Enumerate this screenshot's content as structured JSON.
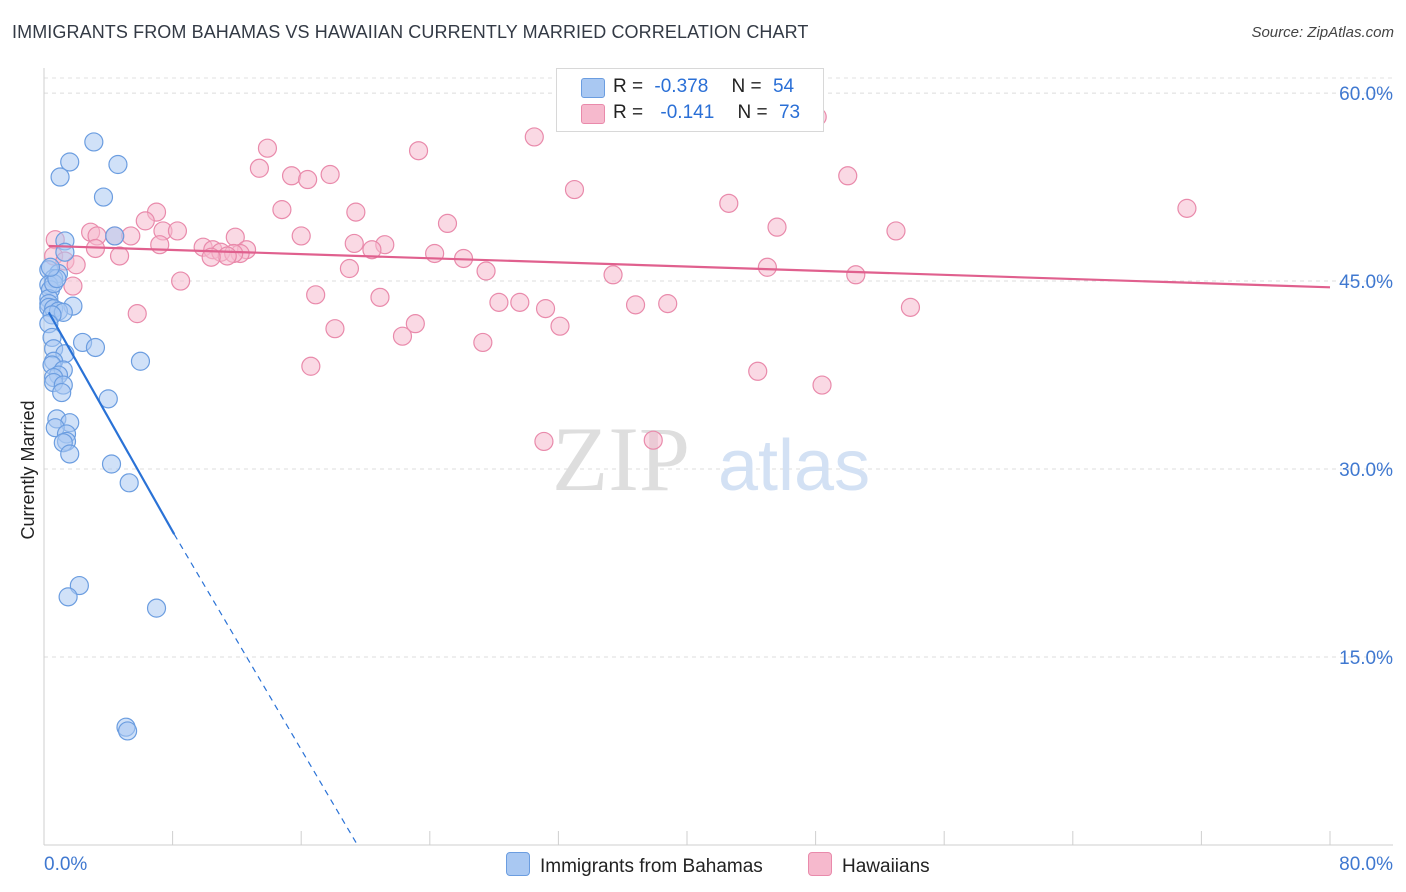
{
  "title": "IMMIGRANTS FROM BAHAMAS VS HAWAIIAN CURRENTLY MARRIED CORRELATION CHART",
  "source": "Source: ZipAtlas.com",
  "watermark": {
    "zip": "ZIP",
    "atlas": "atlas"
  },
  "colors": {
    "blue": "#2a72d6",
    "blue_fill": "#a9c8f2",
    "pink": "#e0608e",
    "pink_fill": "#f6b9cd",
    "axis_value": "#3f78d0",
    "grid": "#dddddd"
  },
  "legend": {
    "blue": {
      "r_label": "R =",
      "r_value": "-0.378",
      "n_label": "N =",
      "n_value": "54"
    },
    "pink": {
      "r_label": "R =",
      "r_value": "-0.141",
      "n_label": "N =",
      "n_value": "73"
    }
  },
  "bottom_legend": {
    "blue": "Immigrants from Bahamas",
    "pink": "Hawaiians"
  },
  "chart_data": {
    "type": "scatter",
    "title": "IMMIGRANTS FROM BAHAMAS VS HAWAIIAN CURRENTLY MARRIED CORRELATION CHART",
    "xlabel": "",
    "ylabel": "Currently Married",
    "xlim": [
      0,
      80
    ],
    "ylim": [
      0,
      62
    ],
    "x_tick_labels": [
      "0.0%",
      "80.0%"
    ],
    "y_ticks": [
      15,
      30,
      45,
      60
    ],
    "y_tick_labels": [
      "15.0%",
      "30.0%",
      "45.0%",
      "60.0%"
    ],
    "series": [
      {
        "name": "Immigrants from Bahamas",
        "color": "#2a72d6",
        "r": -0.378,
        "n": 54,
        "trend": {
          "x": [
            0.3,
            8.1
          ],
          "y": [
            42.5,
            24.8
          ],
          "dashed_to": {
            "x": 19.5,
            "y": 0
          }
        },
        "points": [
          [
            3.1,
            56.1
          ],
          [
            1.6,
            54.5
          ],
          [
            4.6,
            54.3
          ],
          [
            1.0,
            53.3
          ],
          [
            3.7,
            51.7
          ],
          [
            4.4,
            48.6
          ],
          [
            1.3,
            48.2
          ],
          [
            1.3,
            47.3
          ],
          [
            0.3,
            45.9
          ],
          [
            0.9,
            45.6
          ],
          [
            0.6,
            45.2
          ],
          [
            0.3,
            44.7
          ],
          [
            0.4,
            44.3
          ],
          [
            0.3,
            43.6
          ],
          [
            0.3,
            43.2
          ],
          [
            0.3,
            42.9
          ],
          [
            1.8,
            43.0
          ],
          [
            0.6,
            42.8
          ],
          [
            0.9,
            42.6
          ],
          [
            1.2,
            42.5
          ],
          [
            0.5,
            42.3
          ],
          [
            0.3,
            41.6
          ],
          [
            0.5,
            40.5
          ],
          [
            2.4,
            40.1
          ],
          [
            3.2,
            39.7
          ],
          [
            0.6,
            39.6
          ],
          [
            1.3,
            39.2
          ],
          [
            0.6,
            38.6
          ],
          [
            0.5,
            38.3
          ],
          [
            6.0,
            38.6
          ],
          [
            1.2,
            37.9
          ],
          [
            0.9,
            37.5
          ],
          [
            0.6,
            37.3
          ],
          [
            0.6,
            36.9
          ],
          [
            1.2,
            36.7
          ],
          [
            1.1,
            36.1
          ],
          [
            4.0,
            35.6
          ],
          [
            0.8,
            34.0
          ],
          [
            1.6,
            33.7
          ],
          [
            0.7,
            33.3
          ],
          [
            1.4,
            32.8
          ],
          [
            1.4,
            32.2
          ],
          [
            1.2,
            32.1
          ],
          [
            1.6,
            31.2
          ],
          [
            4.2,
            30.4
          ],
          [
            5.3,
            28.9
          ],
          [
            2.2,
            20.7
          ],
          [
            1.5,
            19.8
          ],
          [
            7.0,
            18.9
          ],
          [
            5.1,
            9.4
          ],
          [
            5.2,
            9.1
          ],
          [
            0.6,
            44.8
          ],
          [
            0.8,
            45.2
          ],
          [
            0.4,
            46.1
          ]
        ]
      },
      {
        "name": "Hawaiians",
        "color": "#e0608e",
        "r": -0.141,
        "n": 73,
        "trend": {
          "x": [
            0.3,
            80
          ],
          "y": [
            47.8,
            44.5
          ]
        },
        "points": [
          [
            48.1,
            58.1
          ],
          [
            13.9,
            55.6
          ],
          [
            23.3,
            55.4
          ],
          [
            30.5,
            56.5
          ],
          [
            13.4,
            54.0
          ],
          [
            15.4,
            53.4
          ],
          [
            17.8,
            53.5
          ],
          [
            16.4,
            53.1
          ],
          [
            50.0,
            53.4
          ],
          [
            33.0,
            52.3
          ],
          [
            42.6,
            51.2
          ],
          [
            71.1,
            50.8
          ],
          [
            7.0,
            50.5
          ],
          [
            14.8,
            50.7
          ],
          [
            19.4,
            50.5
          ],
          [
            6.3,
            49.8
          ],
          [
            25.1,
            49.6
          ],
          [
            45.6,
            49.3
          ],
          [
            53.0,
            49.0
          ],
          [
            2.9,
            48.9
          ],
          [
            7.4,
            49.0
          ],
          [
            8.3,
            49.0
          ],
          [
            4.4,
            48.6
          ],
          [
            3.3,
            48.6
          ],
          [
            5.4,
            48.6
          ],
          [
            16.0,
            48.6
          ],
          [
            11.9,
            48.5
          ],
          [
            0.7,
            48.3
          ],
          [
            19.3,
            48.0
          ],
          [
            21.2,
            47.9
          ],
          [
            7.2,
            47.9
          ],
          [
            9.9,
            47.7
          ],
          [
            3.2,
            47.6
          ],
          [
            20.4,
            47.5
          ],
          [
            10.5,
            47.5
          ],
          [
            12.6,
            47.5
          ],
          [
            11.0,
            47.3
          ],
          [
            12.2,
            47.2
          ],
          [
            11.8,
            47.2
          ],
          [
            11.4,
            47.0
          ],
          [
            24.3,
            47.2
          ],
          [
            4.7,
            47.0
          ],
          [
            0.6,
            47.0
          ],
          [
            10.4,
            46.9
          ],
          [
            26.1,
            46.8
          ],
          [
            1.3,
            46.6
          ],
          [
            2.0,
            46.3
          ],
          [
            45.0,
            46.1
          ],
          [
            19.0,
            46.0
          ],
          [
            27.5,
            45.8
          ],
          [
            35.4,
            45.5
          ],
          [
            50.5,
            45.5
          ],
          [
            8.5,
            45.0
          ],
          [
            1.8,
            44.6
          ],
          [
            16.9,
            43.9
          ],
          [
            20.9,
            43.7
          ],
          [
            28.3,
            43.3
          ],
          [
            29.6,
            43.3
          ],
          [
            36.8,
            43.1
          ],
          [
            38.8,
            43.2
          ],
          [
            53.9,
            42.9
          ],
          [
            31.2,
            42.8
          ],
          [
            5.8,
            42.4
          ],
          [
            23.1,
            41.6
          ],
          [
            32.1,
            41.4
          ],
          [
            18.1,
            41.2
          ],
          [
            22.3,
            40.6
          ],
          [
            27.3,
            40.1
          ],
          [
            16.6,
            38.2
          ],
          [
            44.4,
            37.8
          ],
          [
            48.4,
            36.7
          ],
          [
            31.1,
            32.2
          ],
          [
            37.9,
            32.3
          ]
        ]
      }
    ]
  }
}
